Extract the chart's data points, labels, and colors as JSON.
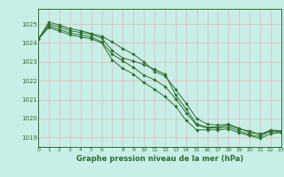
{
  "title": "Graphe pression niveau de la mer (hPa)",
  "background_color": "#c8eee8",
  "grid_color": "#e0b8b8",
  "line_color": "#2d6e2d",
  "marker_color": "#2d6e2d",
  "xlim": [
    0,
    23
  ],
  "ylim": [
    1018.5,
    1025.8
  ],
  "xtick_labels": [
    "0",
    "1",
    "2",
    "3",
    "4",
    "5",
    "6",
    "",
    "8",
    "9",
    "10",
    "11",
    "12",
    "13",
    "14",
    "15",
    "16",
    "17",
    "18",
    "19",
    "20",
    "21",
    "22",
    "23"
  ],
  "xtick_positions": [
    0,
    1,
    2,
    3,
    4,
    5,
    6,
    7,
    8,
    9,
    10,
    11,
    12,
    13,
    14,
    15,
    16,
    17,
    18,
    19,
    20,
    21,
    22,
    23
  ],
  "yticks": [
    1019,
    1020,
    1021,
    1022,
    1023,
    1024,
    1025
  ],
  "series": [
    [
      1024.2,
      1025.0,
      1024.85,
      1024.65,
      1024.55,
      1024.45,
      1024.25,
      1023.6,
      1023.2,
      1023.05,
      1022.85,
      1022.6,
      1022.35,
      1021.25,
      1020.5,
      1019.7,
      1019.55,
      1019.55,
      1019.65,
      1019.45,
      1019.35,
      1019.15,
      1019.4,
      1019.35
    ],
    [
      1024.2,
      1025.1,
      1024.95,
      1024.75,
      1024.65,
      1024.5,
      1024.35,
      1024.05,
      1023.7,
      1023.4,
      1023.0,
      1022.5,
      1022.25,
      1021.55,
      1020.8,
      1020.0,
      1019.7,
      1019.65,
      1019.7,
      1019.5,
      1019.25,
      1019.2,
      1019.3,
      1019.3
    ],
    [
      1024.2,
      1024.9,
      1024.72,
      1024.52,
      1024.42,
      1024.32,
      1024.05,
      1023.4,
      1023.05,
      1022.7,
      1022.3,
      1022.05,
      1021.7,
      1021.05,
      1020.3,
      1019.65,
      1019.5,
      1019.5,
      1019.55,
      1019.35,
      1019.15,
      1019.05,
      1019.35,
      1019.3
    ],
    [
      1024.2,
      1024.82,
      1024.62,
      1024.42,
      1024.32,
      1024.22,
      1024.0,
      1023.1,
      1022.65,
      1022.35,
      1021.9,
      1021.55,
      1021.15,
      1020.65,
      1019.9,
      1019.4,
      1019.4,
      1019.4,
      1019.45,
      1019.25,
      1019.1,
      1018.95,
      1019.2,
      1019.25
    ]
  ]
}
